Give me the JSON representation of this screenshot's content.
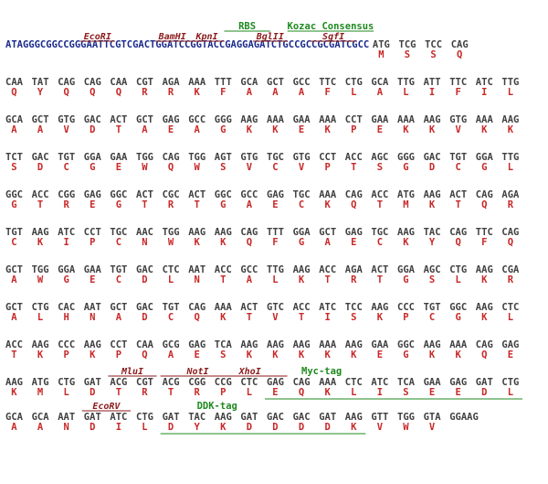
{
  "colors": {
    "nucleotide": "#404040",
    "leader_nucleotide": "#1a2a8c",
    "amino_acid": "#c82828",
    "restriction_site": "#8b1a1a",
    "feature": "#1f8a1f"
  },
  "rows": [
    {
      "leader": "ATAGGGCGGCCGGGAATTCGTCGACTGGATCCGGTACCGAGGAGATCTGCCGCCGCGATCGCC",
      "codons": [
        "ATG",
        "TCG",
        "TCC",
        "CAG"
      ],
      "aa": [
        "M",
        "S",
        "S",
        "Q"
      ]
    },
    {
      "codons": [
        "CAA",
        "TAT",
        "CAG",
        "CAG",
        "CAA",
        "CGT",
        "AGA",
        "AAA",
        "TTT",
        "GCA",
        "GCT",
        "GCC",
        "TTC",
        "CTG",
        "GCA",
        "TTG",
        "ATT",
        "TTC",
        "ATC",
        "TTG"
      ],
      "aa": [
        "Q",
        "Y",
        "Q",
        "Q",
        "Q",
        "R",
        "R",
        "K",
        "F",
        "A",
        "A",
        "A",
        "F",
        "L",
        "A",
        "L",
        "I",
        "F",
        "I",
        "L"
      ]
    },
    {
      "codons": [
        "GCA",
        "GCT",
        "GTG",
        "GAC",
        "ACT",
        "GCT",
        "GAG",
        "GCC",
        "GGG",
        "AAG",
        "AAA",
        "GAA",
        "AAA",
        "CCT",
        "GAA",
        "AAA",
        "AAG",
        "GTG",
        "AAA",
        "AAG"
      ],
      "aa": [
        "A",
        "A",
        "V",
        "D",
        "T",
        "A",
        "E",
        "A",
        "G",
        "K",
        "K",
        "E",
        "K",
        "P",
        "E",
        "K",
        "K",
        "V",
        "K",
        "K"
      ]
    },
    {
      "codons": [
        "TCT",
        "GAC",
        "TGT",
        "GGA",
        "GAA",
        "TGG",
        "CAG",
        "TGG",
        "AGT",
        "GTG",
        "TGC",
        "GTG",
        "CCT",
        "ACC",
        "AGC",
        "GGG",
        "GAC",
        "TGT",
        "GGA",
        "TTG"
      ],
      "aa": [
        "S",
        "D",
        "C",
        "G",
        "E",
        "W",
        "Q",
        "W",
        "S",
        "V",
        "C",
        "V",
        "P",
        "T",
        "S",
        "G",
        "D",
        "C",
        "G",
        "L"
      ]
    },
    {
      "codons": [
        "GGC",
        "ACC",
        "CGG",
        "GAG",
        "GGC",
        "ACT",
        "CGC",
        "ACT",
        "GGC",
        "GCC",
        "GAG",
        "TGC",
        "AAA",
        "CAG",
        "ACC",
        "ATG",
        "AAG",
        "ACT",
        "CAG",
        "AGA"
      ],
      "aa": [
        "G",
        "T",
        "R",
        "E",
        "G",
        "T",
        "R",
        "T",
        "G",
        "A",
        "E",
        "C",
        "K",
        "Q",
        "T",
        "M",
        "K",
        "T",
        "Q",
        "R"
      ]
    },
    {
      "codons": [
        "TGT",
        "AAG",
        "ATC",
        "CCT",
        "TGC",
        "AAC",
        "TGG",
        "AAG",
        "AAG",
        "CAG",
        "TTT",
        "GGA",
        "GCT",
        "GAG",
        "TGC",
        "AAG",
        "TAC",
        "CAG",
        "TTC",
        "CAG"
      ],
      "aa": [
        "C",
        "K",
        "I",
        "P",
        "C",
        "N",
        "W",
        "K",
        "K",
        "Q",
        "F",
        "G",
        "A",
        "E",
        "C",
        "K",
        "Y",
        "Q",
        "F",
        "Q"
      ]
    },
    {
      "codons": [
        "GCT",
        "TGG",
        "GGA",
        "GAA",
        "TGT",
        "GAC",
        "CTC",
        "AAT",
        "ACC",
        "GCC",
        "TTG",
        "AAG",
        "ACC",
        "AGA",
        "ACT",
        "GGA",
        "AGC",
        "CTG",
        "AAG",
        "CGA"
      ],
      "aa": [
        "A",
        "W",
        "G",
        "E",
        "C",
        "D",
        "L",
        "N",
        "T",
        "A",
        "L",
        "K",
        "T",
        "R",
        "T",
        "G",
        "S",
        "L",
        "K",
        "R"
      ]
    },
    {
      "codons": [
        "GCT",
        "CTG",
        "CAC",
        "AAT",
        "GCT",
        "GAC",
        "TGT",
        "CAG",
        "AAA",
        "ACT",
        "GTC",
        "ACC",
        "ATC",
        "TCC",
        "AAG",
        "CCC",
        "TGT",
        "GGC",
        "AAG",
        "CTC"
      ],
      "aa": [
        "A",
        "L",
        "H",
        "N",
        "A",
        "D",
        "C",
        "Q",
        "K",
        "T",
        "V",
        "T",
        "I",
        "S",
        "K",
        "P",
        "C",
        "G",
        "K",
        "L"
      ]
    },
    {
      "codons": [
        "ACC",
        "AAG",
        "CCC",
        "AAG",
        "CCT",
        "CAA",
        "GCG",
        "GAG",
        "TCA",
        "AAG",
        "AAG",
        "AAG",
        "AAA",
        "AAG",
        "GAA",
        "GGC",
        "AAG",
        "AAA",
        "CAG",
        "GAG"
      ],
      "aa": [
        "T",
        "K",
        "P",
        "K",
        "P",
        "Q",
        "A",
        "E",
        "S",
        "K",
        "K",
        "K",
        "K",
        "K",
        "E",
        "G",
        "K",
        "K",
        "Q",
        "E"
      ]
    },
    {
      "codons": [
        "AAG",
        "ATG",
        "CTG",
        "GAT",
        "ACG",
        "CGT",
        "ACG",
        "CGG",
        "CCG",
        "CTC",
        "GAG",
        "CAG",
        "AAA",
        "CTC",
        "ATC",
        "TCA",
        "GAA",
        "GAG",
        "GAT",
        "CTG"
      ],
      "aa": [
        "K",
        "M",
        "L",
        "D",
        "T",
        "R",
        "T",
        "R",
        "P",
        "L",
        "E",
        "Q",
        "K",
        "L",
        "I",
        "S",
        "E",
        "E",
        "D",
        "L"
      ]
    },
    {
      "codons": [
        "GCA",
        "GCA",
        "AAT",
        "GAT",
        "ATC",
        "CTG",
        "GAT",
        "TAC",
        "AAG",
        "GAT",
        "GAC",
        "GAC",
        "GAT",
        "AAG",
        "GTT",
        "TGG",
        "GTA",
        "GGAAG"
      ],
      "aa": [
        "A",
        "A",
        "N",
        "D",
        "I",
        "L",
        "D",
        "Y",
        "K",
        "D",
        "D",
        "D",
        "D",
        "K",
        "V",
        "W",
        "V",
        ""
      ]
    }
  ],
  "annotations": [
    {
      "row": 0,
      "kind": "site",
      "label": "EcoRI",
      "char": 13,
      "len": 6
    },
    {
      "row": 0,
      "kind": "site",
      "label": "BamHI",
      "char": 26,
      "len": 6
    },
    {
      "row": 0,
      "kind": "site",
      "label": "KpnI",
      "char": 32,
      "len": 6
    },
    {
      "row": 0,
      "kind": "site",
      "label": "BglII",
      "char": 43,
      "len": 6
    },
    {
      "row": 0,
      "kind": "site",
      "label": "SgfI",
      "char": 53,
      "len": 8
    },
    {
      "row": 0,
      "kind": "feature",
      "label": "RBS",
      "char": 38,
      "len": 8
    },
    {
      "row": 0,
      "kind": "feature",
      "label": "Kozac Consensus",
      "char": 49,
      "len": 15
    },
    {
      "row": 9,
      "kind": "site",
      "label": "MluI",
      "codon": 4,
      "span": 2
    },
    {
      "row": 9,
      "kind": "site",
      "label": "NotI",
      "codon": 6,
      "span": 3
    },
    {
      "row": 9,
      "kind": "site",
      "label": "XhoI",
      "codon": 8,
      "span": 3
    },
    {
      "row": 9,
      "kind": "feature",
      "label": "Myc-tag",
      "codon": 10,
      "span": 10,
      "under": true
    },
    {
      "row": 10,
      "kind": "site",
      "label": "EcoRV",
      "codon": 3,
      "span": 2
    },
    {
      "row": 10,
      "kind": "feature",
      "label": "DDK-tag",
      "codon": 6,
      "span": 8,
      "under": true
    }
  ]
}
